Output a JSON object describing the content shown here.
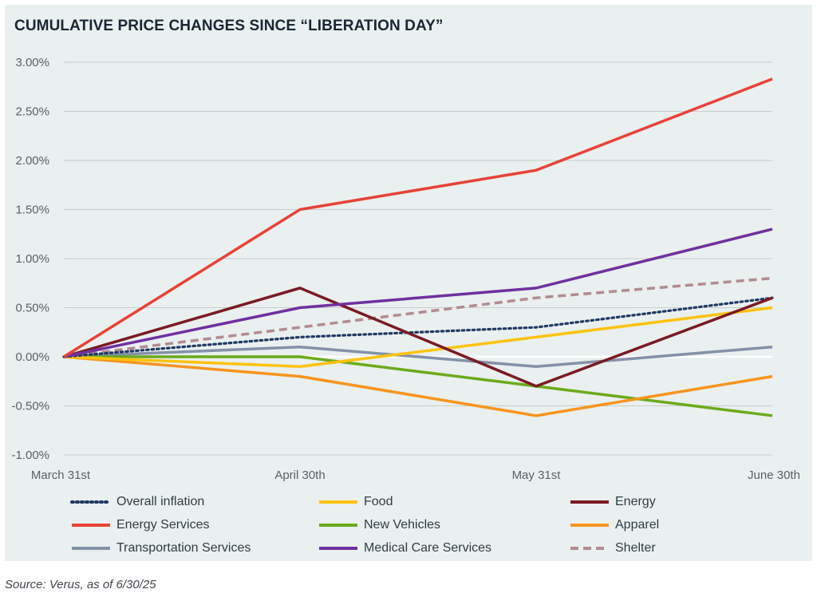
{
  "chart_data": {
    "type": "line",
    "title": "CUMULATIVE PRICE CHANGES SINCE “LIBERATION DAY”",
    "categories": [
      "March 31st",
      "April 30th",
      "May 31st",
      "June 30th"
    ],
    "ylim": [
      -1.0,
      3.0
    ],
    "y_ticks": [
      "3.00%",
      "2.50%",
      "2.00%",
      "1.50%",
      "1.00%",
      "0.50%",
      "0.00%",
      "-0.50%",
      "-1.00%"
    ],
    "y_tick_values": [
      3.0,
      2.5,
      2.0,
      1.5,
      1.0,
      0.5,
      0.0,
      -0.5,
      -1.0
    ],
    "grid": true,
    "legend_position": "bottom",
    "series": [
      {
        "name": "Overall inflation",
        "values": [
          0.0,
          0.2,
          0.3,
          0.6
        ],
        "color": "#1f3864",
        "style": "dotted"
      },
      {
        "name": "Food",
        "values": [
          0.0,
          -0.1,
          0.2,
          0.5
        ],
        "color": "#ffc20e",
        "style": "solid"
      },
      {
        "name": "Energy",
        "values": [
          0.0,
          0.7,
          -0.3,
          0.6
        ],
        "color": "#7b1a23",
        "style": "solid"
      },
      {
        "name": "Energy Services",
        "values": [
          0.0,
          1.5,
          1.9,
          2.83
        ],
        "color": "#e84236",
        "style": "solid"
      },
      {
        "name": "New Vehicles",
        "values": [
          0.0,
          0.0,
          -0.3,
          -0.6
        ],
        "color": "#6aab1b",
        "style": "solid"
      },
      {
        "name": "Apparel",
        "values": [
          0.0,
          -0.2,
          -0.6,
          -0.2
        ],
        "color": "#f8941d",
        "style": "solid"
      },
      {
        "name": "Transportation Services",
        "values": [
          0.0,
          0.1,
          -0.1,
          0.1
        ],
        "color": "#8591a9",
        "style": "solid"
      },
      {
        "name": "Medical Care Services",
        "values": [
          0.0,
          0.5,
          0.7,
          1.3
        ],
        "color": "#7030a0",
        "style": "solid"
      },
      {
        "name": "Shelter",
        "values": [
          0.0,
          0.3,
          0.6,
          0.8
        ],
        "color": "#b48b90",
        "style": "dashed"
      }
    ]
  },
  "source_note": "Source: Verus, as of 6/30/25"
}
